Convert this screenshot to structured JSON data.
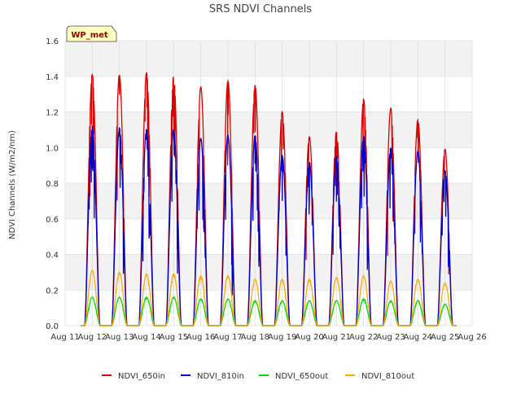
{
  "chart_data": {
    "type": "line",
    "title": "SRS NDVI Channels",
    "ylabel": "NDVI Channels (W/m2/nm)",
    "xlabel": "",
    "station_badge": "WP_met",
    "x_ticks": [
      "Aug 11",
      "Aug 12",
      "Aug 13",
      "Aug 14",
      "Aug 15",
      "Aug 16",
      "Aug 17",
      "Aug 18",
      "Aug 19",
      "Aug 20",
      "Aug 21",
      "Aug 22",
      "Aug 23",
      "Aug 24",
      "Aug 25",
      "Aug 26"
    ],
    "xlim": [
      11,
      26
    ],
    "ylim": [
      0.0,
      1.6
    ],
    "y_ticks": [
      "0.0",
      "0.2",
      "0.4",
      "0.6",
      "0.8",
      "1.0",
      "1.2",
      "1.4",
      "1.6"
    ],
    "grid": true,
    "legend_position": "bottom",
    "days": [
      "Aug 12",
      "Aug 13",
      "Aug 14",
      "Aug 15",
      "Aug 16",
      "Aug 17",
      "Aug 18",
      "Aug 19",
      "Aug 20",
      "Aug 21",
      "Aug 22",
      "Aug 23",
      "Aug 24",
      "Aug 25"
    ],
    "series": [
      {
        "name": "NDVI_650in",
        "color": "#dd0000",
        "daily_peaks": [
          1.41,
          1.41,
          1.42,
          1.4,
          1.34,
          1.38,
          1.35,
          1.2,
          1.06,
          1.09,
          1.27,
          1.22,
          1.16,
          0.99
        ]
      },
      {
        "name": "NDVI_810in",
        "color": "#0000cc",
        "daily_peaks": [
          1.12,
          1.11,
          1.1,
          1.1,
          1.05,
          1.07,
          1.07,
          0.96,
          0.92,
          0.95,
          1.06,
          1.0,
          0.98,
          0.87
        ]
      },
      {
        "name": "NDVI_650out",
        "color": "#00dd00",
        "daily_peaks": [
          0.16,
          0.16,
          0.16,
          0.16,
          0.15,
          0.15,
          0.14,
          0.14,
          0.14,
          0.14,
          0.15,
          0.14,
          0.14,
          0.12
        ]
      },
      {
        "name": "NDVI_810out",
        "color": "#ffaa00",
        "daily_peaks": [
          0.31,
          0.3,
          0.29,
          0.29,
          0.28,
          0.28,
          0.26,
          0.26,
          0.26,
          0.27,
          0.28,
          0.25,
          0.26,
          0.24
        ]
      }
    ]
  }
}
